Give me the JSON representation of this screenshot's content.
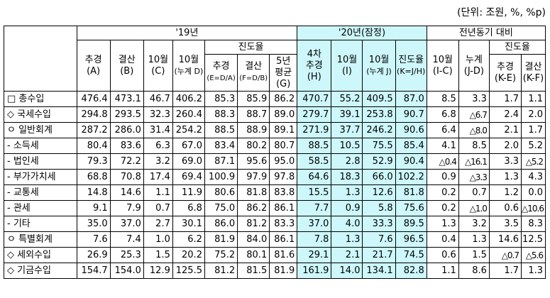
{
  "unit_note": "(단위: 조원, %, %p)",
  "header": {
    "y19": "'19년",
    "y20": "'20년(잠정)",
    "yoy": "전년동기 대비",
    "progress": "진도율",
    "cols": {
      "a1": "추경",
      "a2": "(A)",
      "b1": "결산",
      "b2": "(B)",
      "c1": "10월",
      "c2": "(C)",
      "d1": "10월",
      "d2": "(누계 D)",
      "e1": "추경",
      "e2": "(E=D/A)",
      "f1": "결산",
      "f2": "(F=D/B)",
      "g1": "5년",
      "g2": "평균",
      "g3": "(G)",
      "h1": "4차",
      "h2": "추경",
      "h3": "(H)",
      "i1": "10월",
      "i2": "(I)",
      "j1": "10월",
      "j2": "(누계 J)",
      "k1": "진도율",
      "k2": "(K=J/H)",
      "ic1": "10월",
      "ic2": "(I-C)",
      "jd1": "누계",
      "jd2": "(J-D)",
      "ke1": "추경",
      "ke2": "(K-E)",
      "kf1": "결산",
      "kf2": "(K-F)"
    }
  },
  "rows": [
    {
      "label": "□ 총수입",
      "bold": true,
      "v": [
        "476.4",
        "473.1",
        "46.7",
        "406.2",
        "85.3",
        "85.9",
        "86.2",
        "470.7",
        "55.2",
        "409.5",
        "87.0",
        "8.5",
        "3.3",
        "1.7",
        "1.1"
      ]
    },
    {
      "label": "◇ 국세수입",
      "bold": true,
      "v": [
        "294.8",
        "293.5",
        "32.3",
        "260.4",
        "88.3",
        "88.7",
        "89.0",
        "279.7",
        "39.1",
        "253.8",
        "90.7",
        "6.8",
        "△6.7",
        "2.4",
        "2.0"
      ]
    },
    {
      "label": "ㅇ 일반회계",
      "bold": false,
      "v": [
        "287.2",
        "286.0",
        "31.4",
        "254.2",
        "88.5",
        "88.9",
        "89.1",
        "271.9",
        "37.7",
        "246.2",
        "90.6",
        "6.4",
        "△8.0",
        "2.1",
        "1.7"
      ]
    },
    {
      "label": "- 소득세",
      "bold": false,
      "v": [
        "80.4",
        "83.6",
        "6.3",
        "67.0",
        "83.4",
        "80.2",
        "80.7",
        "88.5",
        "10.5",
        "75.5",
        "85.4",
        "4.1",
        "8.5",
        "2.0",
        "5.2"
      ]
    },
    {
      "label": "- 법인세",
      "bold": false,
      "v": [
        "79.3",
        "72.2",
        "3.2",
        "69.0",
        "87.1",
        "95.6",
        "95.0",
        "58.5",
        "2.8",
        "52.9",
        "90.4",
        "△0.4",
        "△16.1",
        "3.3",
        "△5.2"
      ]
    },
    {
      "label": "- 부가가치세",
      "bold": false,
      "v": [
        "68.8",
        "70.8",
        "17.4",
        "69.4",
        "100.9",
        "97.9",
        "97.8",
        "64.6",
        "18.3",
        "66.0",
        "102.2",
        "0.9",
        "△3.3",
        "1.3",
        "4.3"
      ]
    },
    {
      "label": "- 교통세",
      "bold": false,
      "v": [
        "14.8",
        "14.6",
        "1.1",
        "11.9",
        "80.6",
        "81.8",
        "83.8",
        "15.5",
        "1.3",
        "12.6",
        "81.8",
        "0.2",
        "0.7",
        "1.2",
        "0.0"
      ]
    },
    {
      "label": "- 관세",
      "bold": false,
      "v": [
        "9.1",
        "7.9",
        "0.7",
        "6.8",
        "75.0",
        "86.2",
        "86.1",
        "7.7",
        "0.9",
        "5.8",
        "75.6",
        "0.2",
        "△1.0",
        "0.6",
        "△10.6"
      ]
    },
    {
      "label": "- 기타",
      "bold": false,
      "v": [
        "35.0",
        "37.0",
        "2.7",
        "30.1",
        "86.0",
        "81.2",
        "83.3",
        "37.0",
        "4.0",
        "33.3",
        "89.5",
        "1.3",
        "3.2",
        "3.5",
        "8.3"
      ]
    },
    {
      "label": "ㅇ 특별회계",
      "bold": false,
      "v": [
        "7.6",
        "7.4",
        "1.0",
        "6.2",
        "81.9",
        "84.0",
        "86.1",
        "7.8",
        "1.3",
        "7.6",
        "96.5",
        "0.4",
        "1.3",
        "14.6",
        "12.5"
      ]
    },
    {
      "label": "◇ 세외수입",
      "bold": true,
      "v": [
        "26.9",
        "25.3",
        "1.5",
        "20.2",
        "75.2",
        "80.1",
        "81.6",
        "29.1",
        "2.1",
        "21.7",
        "74.5",
        "0.6",
        "1.5",
        "△0.7",
        "△5.6"
      ]
    },
    {
      "label": "◇ 기금수입",
      "bold": true,
      "v": [
        "154.7",
        "154.0",
        "12.9",
        "125.5",
        "81.2",
        "81.5",
        "81.9",
        "161.9",
        "14.0",
        "134.1",
        "82.8",
        "1.1",
        "8.6",
        "1.7",
        "1.3"
      ]
    }
  ]
}
